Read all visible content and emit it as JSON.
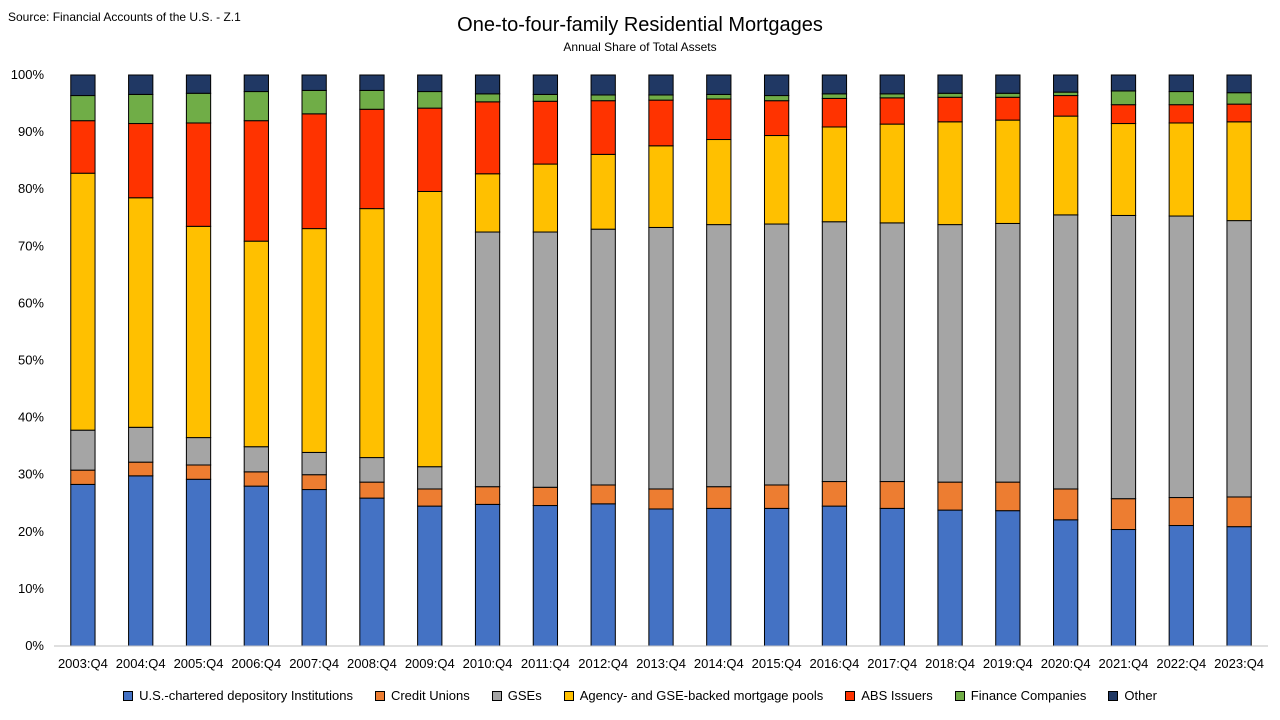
{
  "source": "Source: Financial Accounts of the U.S. - Z.1",
  "chart_data": {
    "type": "bar",
    "stacked": true,
    "title": "One-to-four-family Residential Mortgages",
    "subtitle": "Annual Share of Total Assets",
    "xlabel": "",
    "ylabel": "",
    "ylim": [
      0,
      100
    ],
    "yticks": [
      "0%",
      "10%",
      "20%",
      "30%",
      "40%",
      "50%",
      "60%",
      "70%",
      "80%",
      "90%",
      "100%"
    ],
    "grid": false,
    "legend_position": "bottom",
    "categories": [
      "2003:Q4",
      "2004:Q4",
      "2005:Q4",
      "2006:Q4",
      "2007:Q4",
      "2008:Q4",
      "2009:Q4",
      "2010:Q4",
      "2011:Q4",
      "2012:Q4",
      "2013:Q4",
      "2014:Q4",
      "2015:Q4",
      "2016:Q4",
      "2017:Q4",
      "2018:Q4",
      "2019:Q4",
      "2020:Q4",
      "2021:Q4",
      "2022:Q4",
      "2023:Q4"
    ],
    "series": [
      {
        "name": "U.S.-chartered depository Institutions",
        "color": "#4472C4",
        "values": [
          28.3,
          29.8,
          29.2,
          28.0,
          27.4,
          25.9,
          24.5,
          24.8,
          24.6,
          24.9,
          24.0,
          24.1,
          24.1,
          24.5,
          24.1,
          23.8,
          23.7,
          22.1,
          20.4,
          21.1,
          20.9
        ]
      },
      {
        "name": "Credit Unions",
        "color": "#ED7D31",
        "values": [
          2.5,
          2.4,
          2.5,
          2.5,
          2.6,
          2.8,
          3.0,
          3.1,
          3.2,
          3.3,
          3.5,
          3.8,
          4.1,
          4.3,
          4.7,
          4.9,
          5.0,
          5.4,
          5.4,
          4.9,
          5.2
        ]
      },
      {
        "name": "GSEs",
        "color": "#A5A5A5",
        "values": [
          7.0,
          6.1,
          4.8,
          4.4,
          3.9,
          4.3,
          3.9,
          44.6,
          44.7,
          44.8,
          45.8,
          45.9,
          45.7,
          45.5,
          45.3,
          45.1,
          45.3,
          48.0,
          49.6,
          49.3,
          48.4
        ]
      },
      {
        "name": "Agency- and GSE-backed mortgage pools",
        "color": "#FFC000",
        "values": [
          45.0,
          40.2,
          37.0,
          36.0,
          39.2,
          43.6,
          48.2,
          10.2,
          11.9,
          13.1,
          14.3,
          14.9,
          15.5,
          16.6,
          17.3,
          18.0,
          18.1,
          17.3,
          16.1,
          16.3,
          17.3
        ]
      },
      {
        "name": "ABS Issuers",
        "color": "#FF3300",
        "values": [
          9.2,
          13.0,
          18.1,
          21.1,
          20.1,
          17.4,
          14.6,
          12.6,
          11.0,
          9.4,
          8.0,
          7.1,
          6.1,
          5.0,
          4.6,
          4.3,
          4.0,
          3.6,
          3.3,
          3.2,
          3.1
        ]
      },
      {
        "name": "Finance Companies",
        "color": "#70AD47",
        "values": [
          4.4,
          5.1,
          5.2,
          5.1,
          4.1,
          3.3,
          2.9,
          1.4,
          1.2,
          1.0,
          0.9,
          0.8,
          0.9,
          0.8,
          0.7,
          0.7,
          0.7,
          0.6,
          2.4,
          2.3,
          2.0
        ]
      },
      {
        "name": "Other",
        "color": "#203864",
        "values": [
          3.6,
          3.4,
          3.2,
          2.9,
          2.7,
          2.7,
          2.9,
          3.3,
          3.4,
          3.5,
          3.5,
          3.4,
          3.6,
          3.3,
          3.3,
          3.2,
          3.2,
          3.0,
          2.8,
          2.9,
          3.1
        ]
      }
    ]
  }
}
